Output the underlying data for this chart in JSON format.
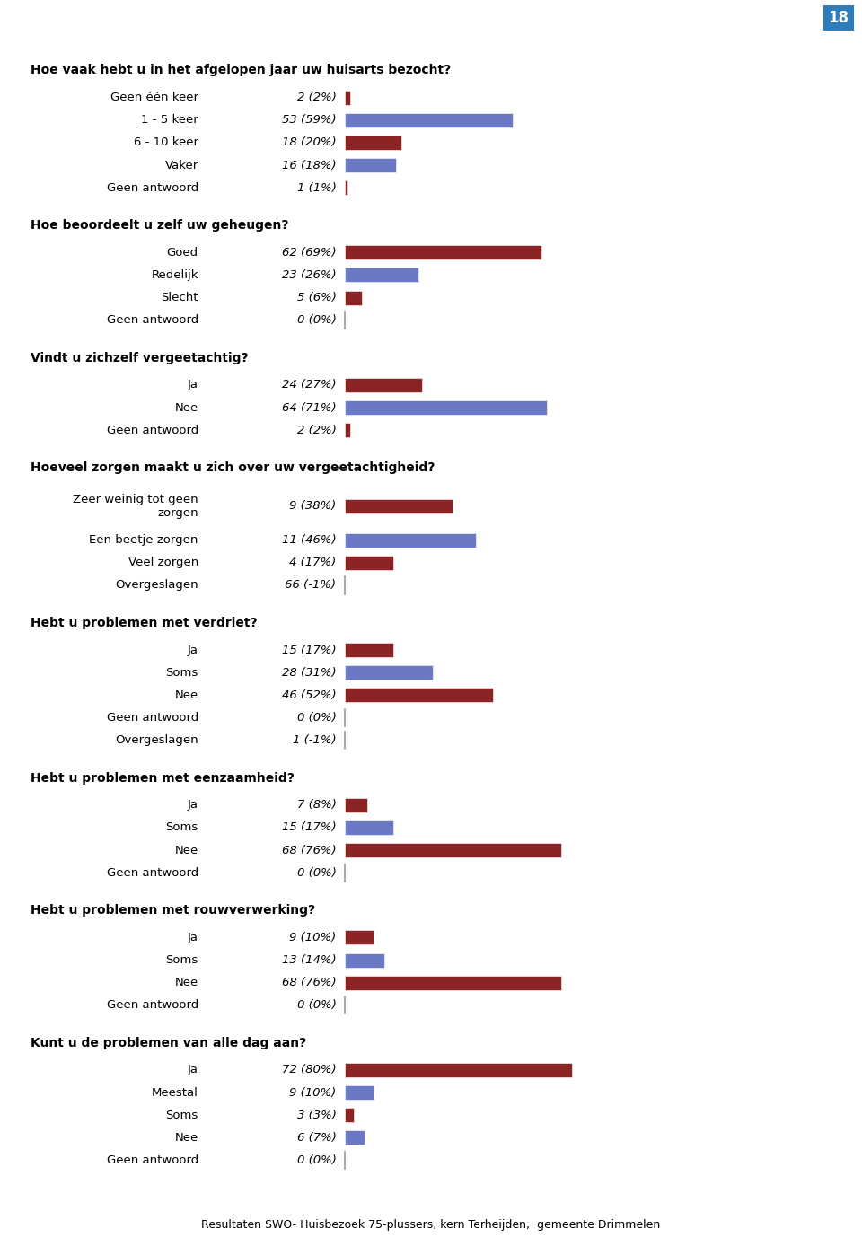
{
  "page_number": "18",
  "footer": "Resultaten SWO- Huisbezoek 75-plussers, kern Terheijden,  gemeente Drimmelen",
  "sections": [
    {
      "title": "Hoe vaak hebt u in het afgelopen jaar uw huisarts bezocht?",
      "items": [
        {
          "label": "Geen één keer",
          "value_label": "2 (2%)",
          "pct": 2,
          "color": "#8B2525"
        },
        {
          "label": "1 - 5 keer",
          "value_label": "53 (59%)",
          "pct": 59,
          "color": "#6B79C5"
        },
        {
          "label": "6 - 10 keer",
          "value_label": "18 (20%)",
          "pct": 20,
          "color": "#8B2525"
        },
        {
          "label": "Vaker",
          "value_label": "16 (18%)",
          "pct": 18,
          "color": "#6B79C5"
        },
        {
          "label": "Geen antwoord",
          "value_label": "1 (1%)",
          "pct": 1,
          "color": "#8B2525"
        }
      ]
    },
    {
      "title": "Hoe beoordeelt u zelf uw geheugen?",
      "items": [
        {
          "label": "Goed",
          "value_label": "62 (69%)",
          "pct": 69,
          "color": "#8B2525"
        },
        {
          "label": "Redelijk",
          "value_label": "23 (26%)",
          "pct": 26,
          "color": "#6B79C5"
        },
        {
          "label": "Slecht",
          "value_label": "5 (6%)",
          "pct": 6,
          "color": "#8B2525"
        },
        {
          "label": "Geen antwoord",
          "value_label": "0 (0%)",
          "pct": 0,
          "color": "#AAAAAA"
        }
      ]
    },
    {
      "title": "Vindt u zichzelf vergeetachtig?",
      "items": [
        {
          "label": "Ja",
          "value_label": "24 (27%)",
          "pct": 27,
          "color": "#8B2525"
        },
        {
          "label": "Nee",
          "value_label": "64 (71%)",
          "pct": 71,
          "color": "#6B79C5"
        },
        {
          "label": "Geen antwoord",
          "value_label": "2 (2%)",
          "pct": 2,
          "color": "#8B2525"
        }
      ]
    },
    {
      "title": "Hoeveel zorgen maakt u zich over uw vergeetachtigheid?",
      "items": [
        {
          "label": "Zeer weinig tot geen\nzorgen",
          "value_label": "9 (38%)",
          "pct": 38,
          "color": "#8B2525"
        },
        {
          "label": "Een beetje zorgen",
          "value_label": "11 (46%)",
          "pct": 46,
          "color": "#6B79C5"
        },
        {
          "label": "Veel zorgen",
          "value_label": "4 (17%)",
          "pct": 17,
          "color": "#8B2525"
        },
        {
          "label": "Overgeslagen",
          "value_label": "66 (-1%)",
          "pct": 0,
          "color": "#AAAAAA"
        }
      ]
    },
    {
      "title": "Hebt u problemen met verdriet?",
      "items": [
        {
          "label": "Ja",
          "value_label": "15 (17%)",
          "pct": 17,
          "color": "#8B2525"
        },
        {
          "label": "Soms",
          "value_label": "28 (31%)",
          "pct": 31,
          "color": "#6B79C5"
        },
        {
          "label": "Nee",
          "value_label": "46 (52%)",
          "pct": 52,
          "color": "#8B2525"
        },
        {
          "label": "Geen antwoord",
          "value_label": "0 (0%)",
          "pct": 0,
          "color": "#AAAAAA"
        },
        {
          "label": "Overgeslagen",
          "value_label": "1 (-1%)",
          "pct": 0,
          "color": "#AAAAAA"
        }
      ]
    },
    {
      "title": "Hebt u problemen met eenzaamheid?",
      "items": [
        {
          "label": "Ja",
          "value_label": "7 (8%)",
          "pct": 8,
          "color": "#8B2525"
        },
        {
          "label": "Soms",
          "value_label": "15 (17%)",
          "pct": 17,
          "color": "#6B79C5"
        },
        {
          "label": "Nee",
          "value_label": "68 (76%)",
          "pct": 76,
          "color": "#8B2525"
        },
        {
          "label": "Geen antwoord",
          "value_label": "0 (0%)",
          "pct": 0,
          "color": "#AAAAAA"
        }
      ]
    },
    {
      "title": "Hebt u problemen met rouwverwerking?",
      "items": [
        {
          "label": "Ja",
          "value_label": "9 (10%)",
          "pct": 10,
          "color": "#8B2525"
        },
        {
          "label": "Soms",
          "value_label": "13 (14%)",
          "pct": 14,
          "color": "#6B79C5"
        },
        {
          "label": "Nee",
          "value_label": "68 (76%)",
          "pct": 76,
          "color": "#8B2525"
        },
        {
          "label": "Geen antwoord",
          "value_label": "0 (0%)",
          "pct": 0,
          "color": "#AAAAAA"
        }
      ]
    },
    {
      "title": "Kunt u de problemen van alle dag aan?",
      "items": [
        {
          "label": "Ja",
          "value_label": "72 (80%)",
          "pct": 80,
          "color": "#8B2525"
        },
        {
          "label": "Meestal",
          "value_label": "9 (10%)",
          "pct": 10,
          "color": "#6B79C5"
        },
        {
          "label": "Soms",
          "value_label": "3 (3%)",
          "pct": 3,
          "color": "#8B2525"
        },
        {
          "label": "Nee",
          "value_label": "6 (7%)",
          "pct": 7,
          "color": "#6B79C5"
        },
        {
          "label": "Geen antwoord",
          "value_label": "0 (0%)",
          "pct": 0,
          "color": "#AAAAAA"
        }
      ]
    }
  ]
}
